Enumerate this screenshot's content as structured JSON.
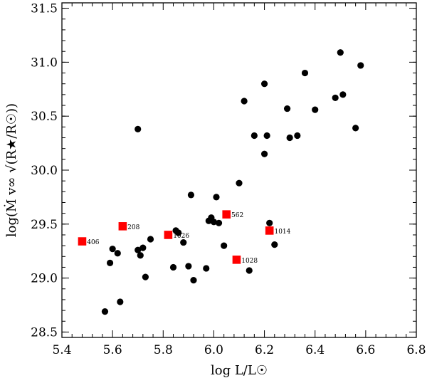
{
  "chart_data": {
    "type": "scatter",
    "title": "",
    "xlabel_html": "log L/L☉",
    "ylabel_html": "log(Ṁ v∞ √(R★/R☉))",
    "xlim": [
      5.4,
      6.8
    ],
    "ylim": [
      28.45,
      31.55
    ],
    "x_ticks": [
      5.4,
      5.6,
      5.8,
      6.0,
      6.2,
      6.4,
      6.6,
      6.8
    ],
    "x_tick_labels": [
      "5.4",
      "5.6",
      "5.8",
      "6.0",
      "6.2",
      "6.4",
      "6.6",
      "6.8"
    ],
    "y_ticks": [
      28.5,
      29.0,
      29.5,
      30.0,
      30.5,
      31.0,
      31.5
    ],
    "y_tick_labels": [
      "28.5",
      "29.0",
      "29.5",
      "30.0",
      "30.5",
      "31.0",
      "31.5"
    ],
    "grid": false,
    "series": [
      {
        "marker": "circle",
        "color": "#000000",
        "points": [
          [
            5.57,
            28.69
          ],
          [
            5.59,
            29.14
          ],
          [
            5.6,
            29.27
          ],
          [
            5.62,
            29.23
          ],
          [
            5.63,
            28.78
          ],
          [
            5.7,
            29.26
          ],
          [
            5.7,
            30.38
          ],
          [
            5.71,
            29.21
          ],
          [
            5.72,
            29.28
          ],
          [
            5.73,
            29.01
          ],
          [
            5.75,
            29.36
          ],
          [
            5.84,
            29.1
          ],
          [
            5.85,
            29.44
          ],
          [
            5.86,
            29.42
          ],
          [
            5.88,
            29.33
          ],
          [
            5.9,
            29.11
          ],
          [
            5.91,
            29.77
          ],
          [
            5.92,
            28.98
          ],
          [
            5.97,
            29.09
          ],
          [
            5.98,
            29.53
          ],
          [
            5.99,
            29.56
          ],
          [
            6.0,
            29.52
          ],
          [
            6.01,
            29.75
          ],
          [
            6.02,
            29.51
          ],
          [
            6.04,
            29.3
          ],
          [
            6.1,
            29.88
          ],
          [
            6.12,
            30.64
          ],
          [
            6.14,
            29.07
          ],
          [
            6.16,
            30.32
          ],
          [
            6.2,
            30.8
          ],
          [
            6.2,
            30.15
          ],
          [
            6.21,
            30.32
          ],
          [
            6.22,
            29.51
          ],
          [
            6.24,
            29.31
          ],
          [
            6.29,
            30.57
          ],
          [
            6.3,
            30.3
          ],
          [
            6.33,
            30.32
          ],
          [
            6.36,
            30.9
          ],
          [
            6.4,
            30.56
          ],
          [
            6.48,
            30.67
          ],
          [
            6.5,
            31.09
          ],
          [
            6.51,
            30.7
          ],
          [
            6.56,
            30.39
          ],
          [
            6.58,
            30.97
          ]
        ]
      },
      {
        "marker": "square",
        "color": "#ff0000",
        "points": [
          [
            5.48,
            29.34
          ],
          [
            5.64,
            29.48
          ],
          [
            5.82,
            29.4
          ],
          [
            6.05,
            29.59
          ],
          [
            6.09,
            29.17
          ],
          [
            6.22,
            29.44
          ]
        ],
        "labels": [
          "406",
          "208",
          "1026",
          "562",
          "1028",
          "1014"
        ]
      }
    ]
  }
}
